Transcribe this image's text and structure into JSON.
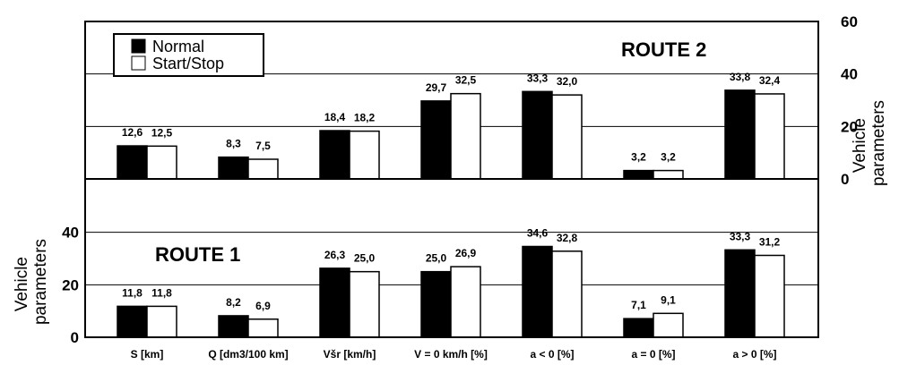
{
  "chart_data": {
    "type": "bar",
    "categories": [
      "S [km]",
      "Q [dm3/100 km]",
      "Všr [km/h]",
      "V = 0 km/h [%]",
      "a < 0 [%]",
      "a = 0 [%]",
      "a > 0 [%]"
    ],
    "legend": {
      "position": "top-left",
      "entries": [
        "Normal",
        "Start/Stop"
      ],
      "colors": [
        "#000000",
        "#ffffff"
      ]
    },
    "panels": [
      {
        "title": "ROUTE 2",
        "ylabel": "Vehicle parameters",
        "ylabel_side": "right",
        "ylim": [
          0,
          60
        ],
        "yticks": [
          "0",
          "20",
          "40",
          "60"
        ],
        "grid": true,
        "series": [
          {
            "name": "Normal",
            "values": [
              12.6,
              8.3,
              18.4,
              29.7,
              33.3,
              3.2,
              33.8
            ],
            "labels": [
              "12,6",
              "8,3",
              "18,4",
              "29,7",
              "33,3",
              "3,2",
              "33,8"
            ]
          },
          {
            "name": "Start/Stop",
            "values": [
              12.5,
              7.5,
              18.2,
              32.5,
              32.0,
              3.2,
              32.4
            ],
            "labels": [
              "12,5",
              "7,5",
              "18,2",
              "32,5",
              "32,0",
              "3,2",
              "32,4"
            ]
          }
        ]
      },
      {
        "title": "ROUTE 1",
        "ylabel": "Vehicle parameters",
        "ylabel_side": "left",
        "ylim": [
          0,
          60
        ],
        "yticks": [
          "0",
          "20",
          "40"
        ],
        "grid": true,
        "series": [
          {
            "name": "Normal",
            "values": [
              11.8,
              8.2,
              26.3,
              25.0,
              34.6,
              7.1,
              33.3
            ],
            "labels": [
              "11,8",
              "8,2",
              "26,3",
              "25,0",
              "34,6",
              "7,1",
              "33,3"
            ]
          },
          {
            "name": "Start/Stop",
            "values": [
              11.8,
              6.9,
              25.0,
              26.9,
              32.8,
              9.1,
              31.2
            ],
            "labels": [
              "11,8",
              "6,9",
              "25,0",
              "26,9",
              "32,8",
              "9,1",
              "31,2"
            ]
          }
        ]
      }
    ]
  }
}
